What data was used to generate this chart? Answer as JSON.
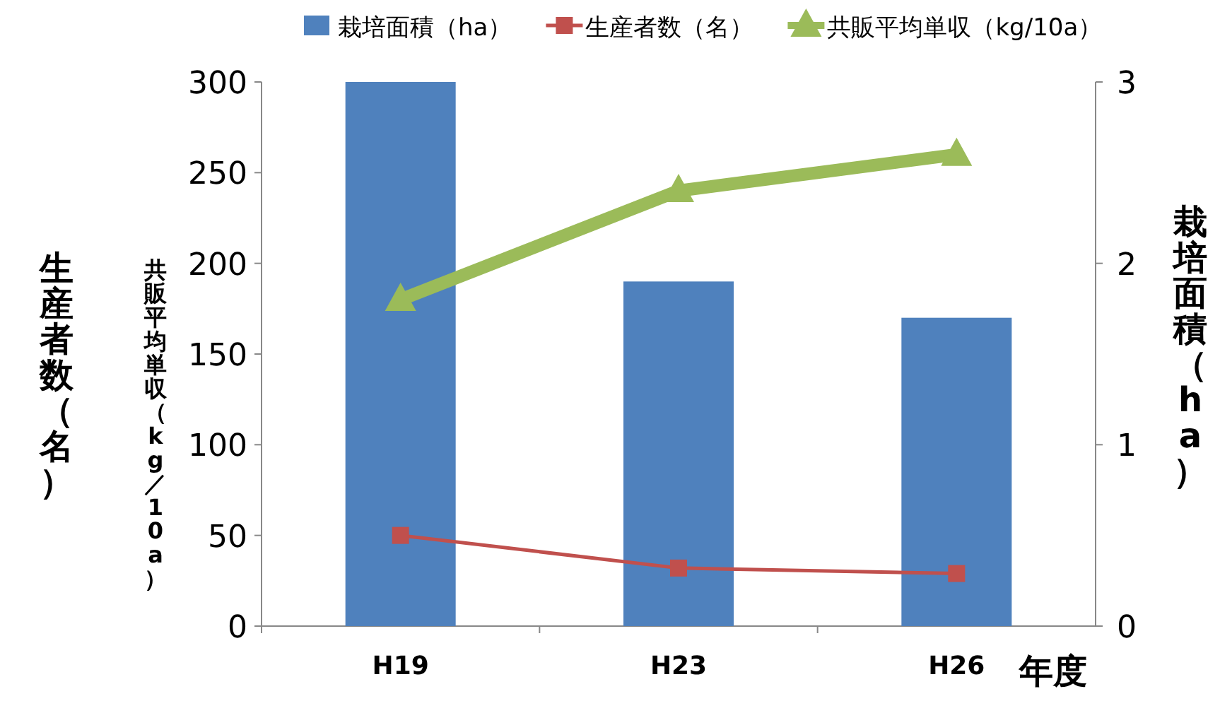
{
  "chart_data": {
    "type": "bar",
    "categories": [
      "H19",
      "H23",
      "H26"
    ],
    "xlabel": "年度",
    "ylabel": "生産者数（名）",
    "y2label": "栽培面積（ha）",
    "annotations": [
      "共販平均単収（kg／10a）"
    ],
    "series": [
      {
        "name": "栽培面積（ha）",
        "axis": "y2",
        "color": "#4f81bd",
        "values": [
          3.0,
          1.9,
          1.7
        ]
      },
      {
        "name": "生産者数（名）",
        "type": "line",
        "axis": "y",
        "color": "#c0504d",
        "marker": "square",
        "values": [
          50,
          32,
          29
        ]
      },
      {
        "name": "共販平均単収（kg/10a）",
        "type": "line",
        "axis": "y",
        "color": "#9bbb59",
        "marker": "triangle",
        "values": [
          180,
          240,
          260
        ]
      }
    ],
    "ylim": [
      0,
      300
    ],
    "yticks": [
      0,
      50,
      100,
      150,
      200,
      250,
      300
    ],
    "y2lim": [
      0,
      3
    ],
    "y2ticks": [
      0,
      1,
      2,
      3
    ],
    "grid": false,
    "legend": "top"
  }
}
